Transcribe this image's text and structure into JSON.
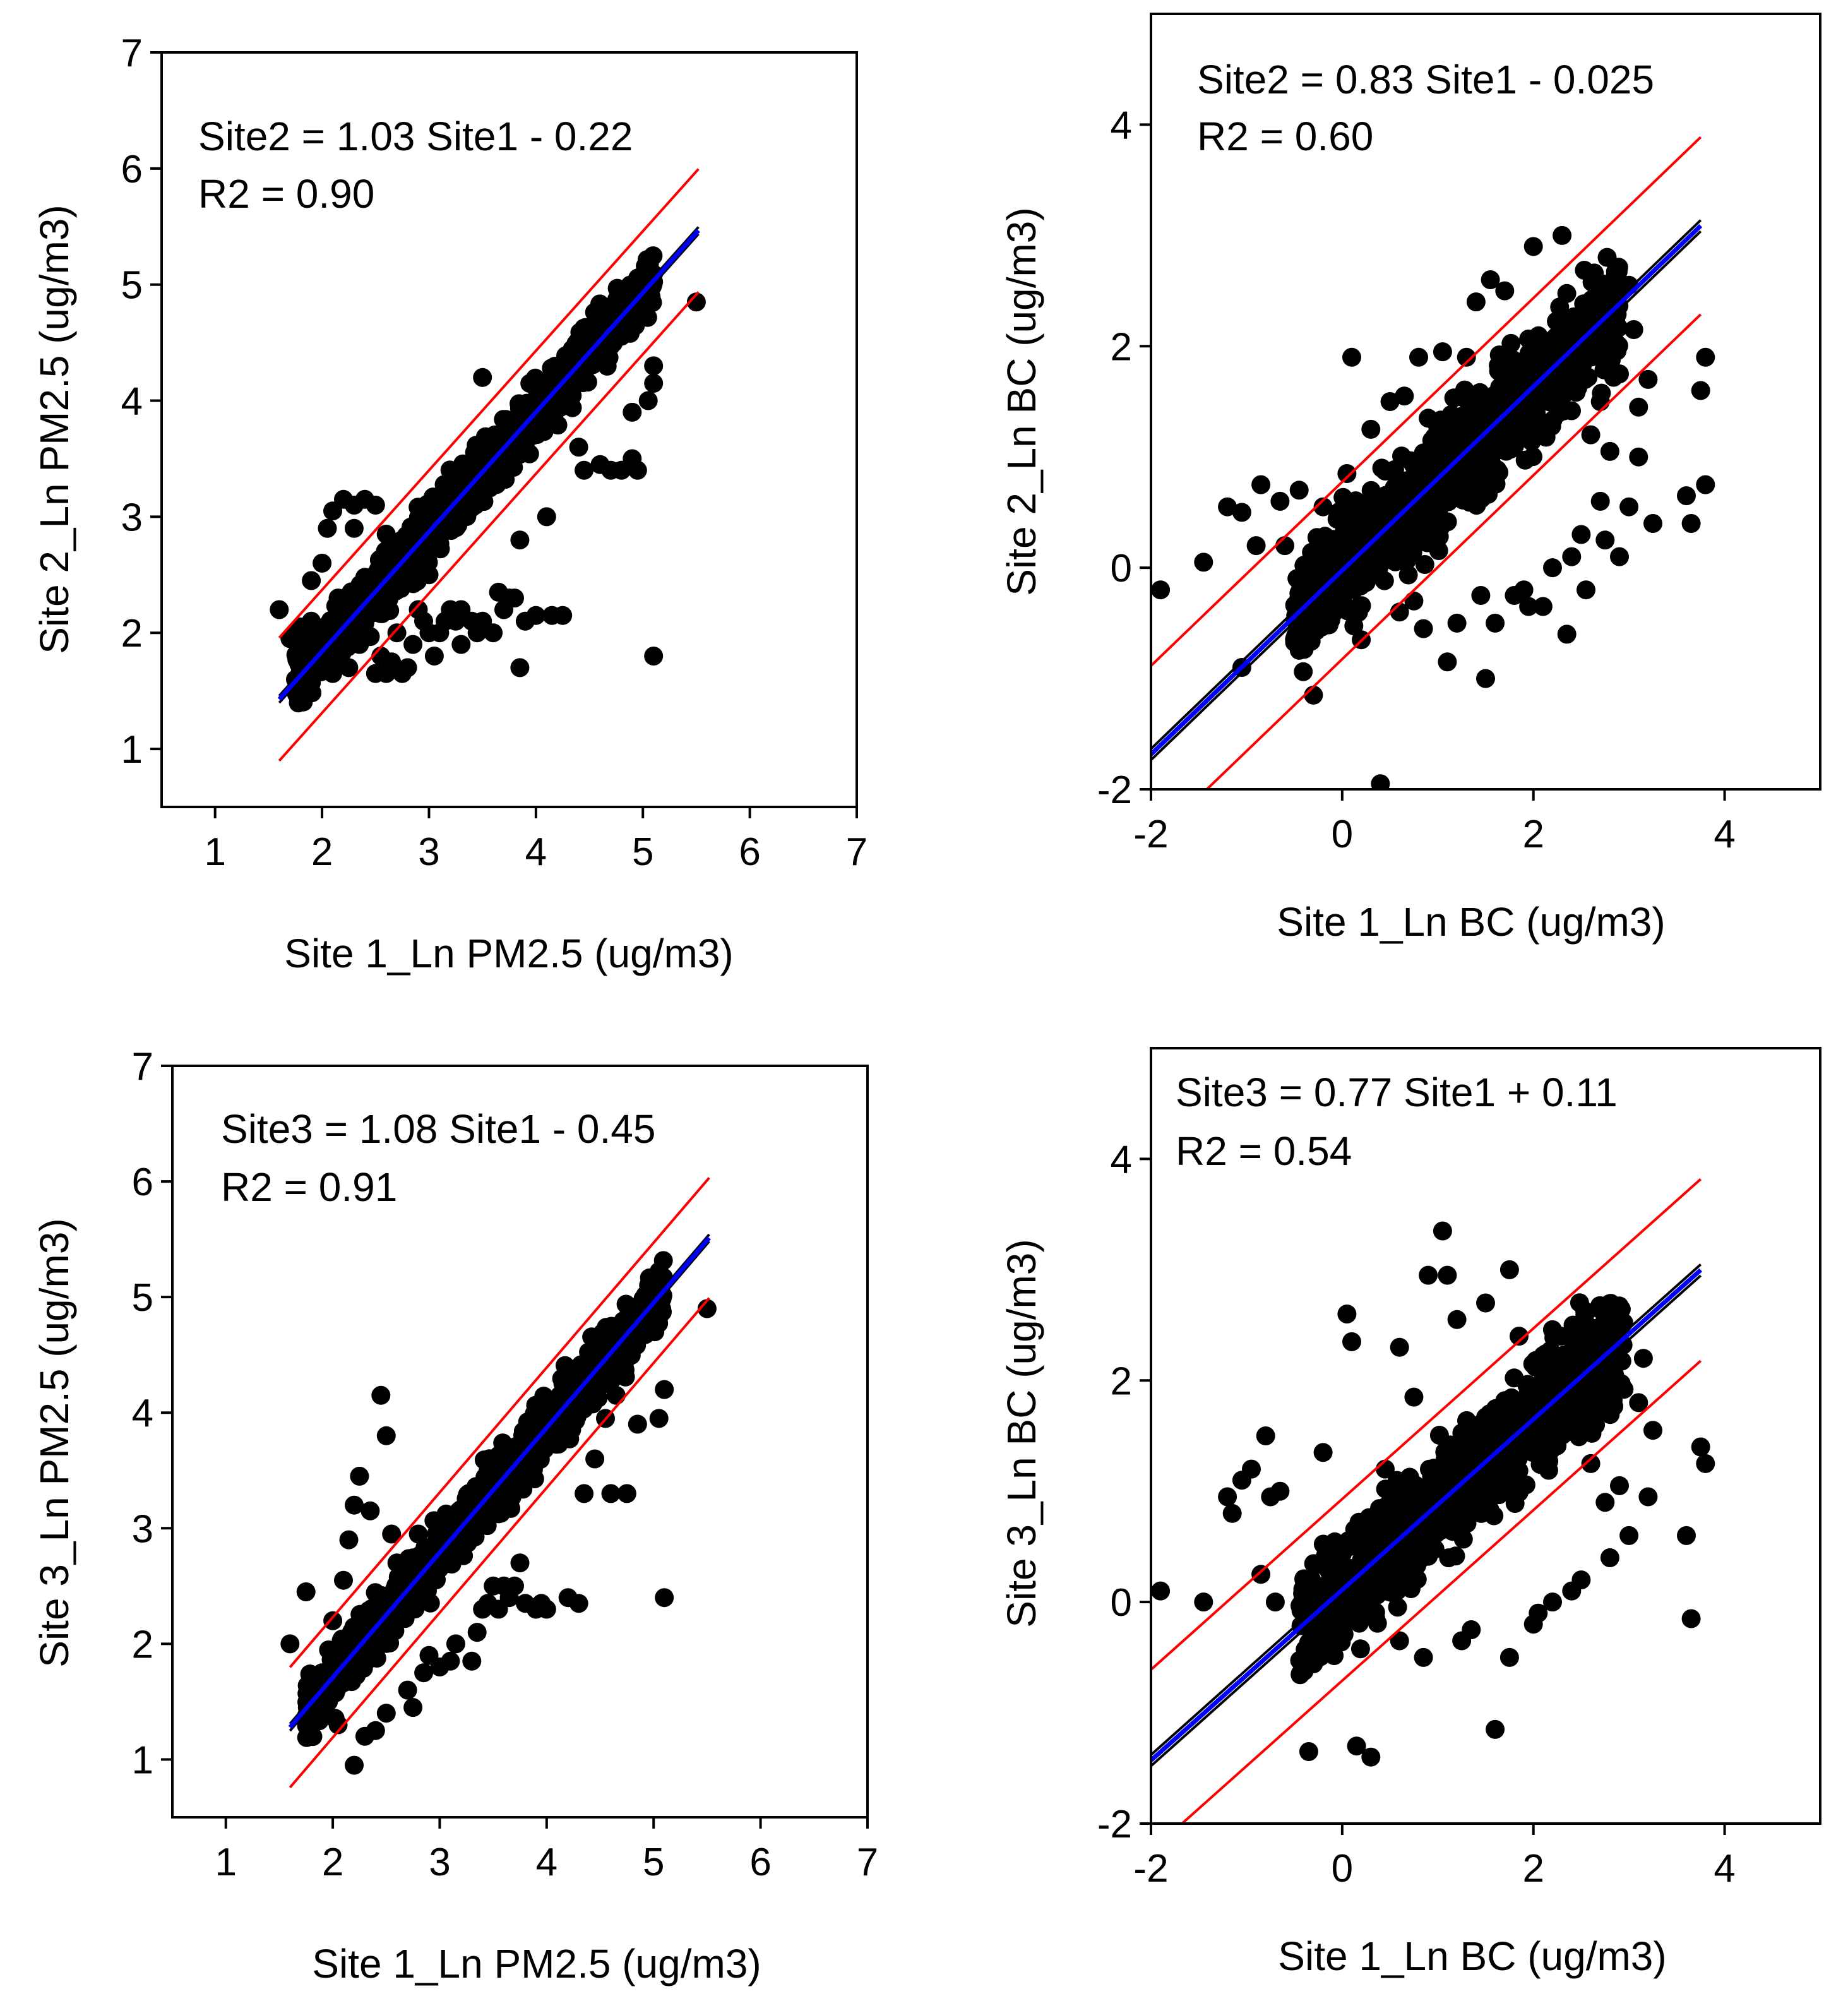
{
  "figure": {
    "colors": {
      "points": "#000000",
      "fit_line": "#0000ff",
      "ci_line": "#000000",
      "prediction_line": "#ff0000",
      "frame": "#000000"
    }
  },
  "chart_data": [
    {
      "id": "A",
      "type": "scatter",
      "title": "",
      "xlabel": "Site 1_Ln PM2.5 (ug/m3)",
      "ylabel": "Site 2_Ln PM2.5 (ug/m3)",
      "xlim": [
        0.5,
        7
      ],
      "ylim": [
        0.5,
        7
      ],
      "xticks": [
        1,
        2,
        3,
        4,
        5,
        6,
        7
      ],
      "yticks": [
        1,
        2,
        3,
        4,
        5,
        6,
        7
      ],
      "equation": "Site2 = 1.03 Site1 - 0.22",
      "r2_text": "R2 = 0.90",
      "fit": {
        "slope": 1.03,
        "intercept": -0.22,
        "x_range": [
          1.6,
          5.52
        ]
      },
      "prediction_band_offset": 0.53,
      "ci_band_offset": 0.03,
      "core": {
        "x_range": [
          1.75,
          5.1
        ],
        "spread": 0.38
      },
      "points": [
        [
          1.6,
          2.2
        ],
        [
          1.7,
          1.95
        ],
        [
          1.75,
          2.0
        ],
        [
          1.8,
          2.05
        ],
        [
          1.82,
          1.75
        ],
        [
          1.85,
          1.9
        ],
        [
          1.9,
          2.1
        ],
        [
          1.9,
          2.45
        ],
        [
          1.95,
          1.7
        ],
        [
          2.0,
          2.6
        ],
        [
          2.0,
          1.8
        ],
        [
          2.05,
          2.9
        ],
        [
          2.1,
          3.05
        ],
        [
          2.1,
          1.65
        ],
        [
          2.15,
          2.3
        ],
        [
          2.2,
          3.15
        ],
        [
          2.25,
          1.7
        ],
        [
          2.3,
          2.9
        ],
        [
          2.3,
          3.1
        ],
        [
          2.35,
          1.9
        ],
        [
          2.4,
          3.15
        ],
        [
          2.45,
          2.2
        ],
        [
          2.5,
          3.1
        ],
        [
          2.5,
          1.65
        ],
        [
          2.55,
          1.8
        ],
        [
          2.6,
          2.85
        ],
        [
          2.6,
          1.65
        ],
        [
          2.65,
          1.75
        ],
        [
          2.7,
          2.0
        ],
        [
          2.75,
          1.65
        ],
        [
          2.8,
          1.7
        ],
        [
          2.85,
          1.9
        ],
        [
          2.9,
          2.2
        ],
        [
          2.95,
          2.1
        ],
        [
          3.0,
          2.5
        ],
        [
          3.0,
          2.0
        ],
        [
          3.05,
          1.8
        ],
        [
          3.1,
          2.0
        ],
        [
          3.15,
          2.1
        ],
        [
          3.2,
          2.2
        ],
        [
          3.25,
          2.1
        ],
        [
          3.3,
          2.2
        ],
        [
          3.3,
          1.9
        ],
        [
          3.4,
          2.1
        ],
        [
          3.45,
          2.0
        ],
        [
          3.5,
          4.2
        ],
        [
          3.5,
          2.1
        ],
        [
          3.6,
          2.0
        ],
        [
          3.65,
          2.35
        ],
        [
          3.7,
          2.2
        ],
        [
          3.75,
          2.3
        ],
        [
          3.8,
          2.3
        ],
        [
          3.85,
          2.8
        ],
        [
          3.85,
          1.7
        ],
        [
          3.9,
          2.1
        ],
        [
          4.0,
          2.15
        ],
        [
          4.1,
          3.0
        ],
        [
          4.15,
          2.15
        ],
        [
          4.25,
          2.15
        ],
        [
          4.4,
          3.6
        ],
        [
          4.45,
          3.4
        ],
        [
          4.6,
          3.45
        ],
        [
          4.7,
          3.4
        ],
        [
          4.8,
          3.4
        ],
        [
          4.9,
          3.5
        ],
        [
          4.95,
          3.4
        ],
        [
          4.9,
          3.9
        ],
        [
          5.05,
          4.0
        ],
        [
          5.1,
          4.15
        ],
        [
          5.1,
          4.3
        ],
        [
          5.1,
          1.8
        ],
        [
          5.5,
          4.85
        ]
      ]
    },
    {
      "id": "B",
      "type": "scatter",
      "title": "",
      "xlabel": "Site 1_Ln BC (ug/m3)",
      "ylabel": "Site 2_Ln BC (ug/m3)",
      "xlim": [
        -2,
        5
      ],
      "ylim": [
        -2,
        5
      ],
      "xticks": [
        -2,
        0,
        2,
        4
      ],
      "yticks": [
        -2,
        0,
        2,
        4
      ],
      "equation": "Site2 = 0.83 Site1 - 0.025",
      "r2_text": "R2 = 0.60",
      "fit": {
        "slope": 0.83,
        "intercept": -0.025,
        "x_range": [
          -2,
          3.75
        ]
      },
      "prediction_band_offset": 0.8,
      "ci_band_offset": 0.05,
      "core": {
        "x_range": [
          -0.5,
          2.9
        ],
        "spread": 0.7
      },
      "points": [
        [
          -1.9,
          -0.2
        ],
        [
          -1.2,
          0.55
        ],
        [
          -1.05,
          0.5
        ],
        [
          -0.85,
          0.75
        ],
        [
          -0.65,
          0.6
        ],
        [
          -0.45,
          0.7
        ],
        [
          -1.45,
          0.05
        ],
        [
          -0.9,
          0.2
        ],
        [
          -1.05,
          -0.9
        ],
        [
          -0.6,
          0.2
        ],
        [
          -0.4,
          -0.65
        ],
        [
          -0.3,
          -1.15
        ],
        [
          -0.2,
          0.55
        ],
        [
          -0.1,
          0.05
        ],
        [
          0.05,
          0.85
        ],
        [
          0.1,
          1.9
        ],
        [
          0.2,
          -0.65
        ],
        [
          0.3,
          1.25
        ],
        [
          0.4,
          -1.95
        ],
        [
          0.5,
          1.5
        ],
        [
          0.6,
          -0.4
        ],
        [
          0.65,
          1.55
        ],
        [
          0.8,
          1.9
        ],
        [
          0.85,
          -0.55
        ],
        [
          0.9,
          1.35
        ],
        [
          1.05,
          1.95
        ],
        [
          1.1,
          -0.85
        ],
        [
          1.2,
          -0.5
        ],
        [
          1.3,
          1.9
        ],
        [
          1.4,
          2.4
        ],
        [
          1.45,
          -0.25
        ],
        [
          1.5,
          -1.0
        ],
        [
          1.55,
          2.6
        ],
        [
          1.6,
          -0.5
        ],
        [
          1.7,
          2.5
        ],
        [
          1.8,
          -0.25
        ],
        [
          1.9,
          -0.2
        ],
        [
          2.0,
          2.9
        ],
        [
          2.1,
          -0.35
        ],
        [
          2.2,
          0.0
        ],
        [
          2.3,
          3.0
        ],
        [
          2.35,
          -0.6
        ],
        [
          2.4,
          0.1
        ],
        [
          2.5,
          0.3
        ],
        [
          2.6,
          1.2
        ],
        [
          2.7,
          0.6
        ],
        [
          2.75,
          0.25
        ],
        [
          2.8,
          1.05
        ],
        [
          2.9,
          0.1
        ],
        [
          3.0,
          0.55
        ],
        [
          3.0,
          2.55
        ],
        [
          3.05,
          2.15
        ],
        [
          3.1,
          1.0
        ],
        [
          3.2,
          1.7
        ],
        [
          3.25,
          0.4
        ],
        [
          3.6,
          0.65
        ],
        [
          3.65,
          0.4
        ],
        [
          3.75,
          1.6
        ],
        [
          3.8,
          1.9
        ],
        [
          3.8,
          0.75
        ],
        [
          2.55,
          -0.2
        ],
        [
          1.95,
          -0.35
        ],
        [
          0.75,
          -0.3
        ],
        [
          -0.25,
          -0.25
        ],
        [
          3.1,
          1.45
        ],
        [
          2.9,
          1.75
        ],
        [
          2.7,
          1.5
        ]
      ]
    },
    {
      "id": "C",
      "type": "scatter",
      "title": "",
      "xlabel": "Site 1_Ln PM2.5 (ug/m3)",
      "ylabel": "Site 3_Ln PM2.5 (ug/m3)",
      "xlim": [
        0.5,
        7
      ],
      "ylim": [
        0.5,
        7
      ],
      "xticks": [
        1,
        2,
        3,
        4,
        5,
        6,
        7
      ],
      "yticks": [
        1,
        2,
        3,
        4,
        5,
        6,
        7
      ],
      "equation": "Site3 = 1.08 Site1 - 0.45",
      "r2_text": "R2 = 0.91",
      "fit": {
        "slope": 1.08,
        "intercept": -0.45,
        "x_range": [
          1.6,
          5.52
        ]
      },
      "prediction_band_offset": 0.52,
      "ci_band_offset": 0.03,
      "core": {
        "x_range": [
          1.75,
          5.1
        ],
        "spread": 0.4
      },
      "points": [
        [
          1.6,
          2.0
        ],
        [
          1.75,
          2.45
        ],
        [
          1.8,
          1.55
        ],
        [
          1.9,
          1.75
        ],
        [
          2.0,
          2.2
        ],
        [
          2.05,
          1.3
        ],
        [
          2.1,
          2.55
        ],
        [
          2.15,
          2.9
        ],
        [
          2.2,
          3.2
        ],
        [
          2.2,
          0.95
        ],
        [
          2.25,
          3.45
        ],
        [
          2.3,
          1.2
        ],
        [
          2.35,
          3.15
        ],
        [
          2.4,
          1.25
        ],
        [
          2.45,
          4.15
        ],
        [
          2.5,
          3.8
        ],
        [
          2.5,
          1.4
        ],
        [
          2.55,
          2.95
        ],
        [
          2.6,
          2.7
        ],
        [
          2.7,
          1.6
        ],
        [
          2.75,
          1.45
        ],
        [
          2.8,
          2.95
        ],
        [
          2.85,
          1.75
        ],
        [
          2.9,
          1.9
        ],
        [
          3.0,
          1.8
        ],
        [
          3.1,
          1.85
        ],
        [
          3.15,
          2.0
        ],
        [
          3.2,
          3.0
        ],
        [
          3.3,
          1.85
        ],
        [
          3.35,
          2.1
        ],
        [
          3.4,
          2.3
        ],
        [
          3.45,
          2.35
        ],
        [
          3.5,
          2.5
        ],
        [
          3.55,
          2.3
        ],
        [
          3.6,
          2.5
        ],
        [
          3.65,
          2.4
        ],
        [
          3.7,
          2.5
        ],
        [
          3.75,
          2.7
        ],
        [
          3.8,
          2.35
        ],
        [
          3.9,
          2.3
        ],
        [
          3.95,
          2.35
        ],
        [
          4.0,
          2.3
        ],
        [
          4.2,
          2.4
        ],
        [
          4.3,
          2.35
        ],
        [
          4.35,
          3.3
        ],
        [
          4.45,
          3.6
        ],
        [
          4.55,
          3.95
        ],
        [
          4.65,
          4.15
        ],
        [
          4.75,
          3.3
        ],
        [
          4.85,
          3.9
        ],
        [
          5.05,
          3.95
        ],
        [
          5.1,
          4.2
        ],
        [
          5.1,
          2.4
        ],
        [
          5.5,
          4.9
        ],
        [
          4.6,
          3.3
        ]
      ]
    },
    {
      "id": "D",
      "type": "scatter",
      "title": "",
      "xlabel": "Site 1_Ln BC (ug/m3)",
      "ylabel": "Site 3_Ln BC (ug/m3)",
      "xlim": [
        -2,
        5
      ],
      "ylim": [
        -2,
        5
      ],
      "xticks": [
        -2,
        0,
        2,
        4
      ],
      "yticks": [
        -2,
        0,
        2,
        4
      ],
      "equation": "Site3 = 0.77 Site1 + 0.11",
      "r2_text": "R2 = 0.54",
      "fit": {
        "slope": 0.77,
        "intercept": 0.11,
        "x_range": [
          -2,
          3.75
        ]
      },
      "prediction_band_offset": 0.82,
      "ci_band_offset": 0.05,
      "core": {
        "x_range": [
          -0.45,
          2.95
        ],
        "spread": 0.75
      },
      "points": [
        [
          -1.9,
          0.1
        ],
        [
          -1.45,
          0.0
        ],
        [
          -1.2,
          0.95
        ],
        [
          -1.15,
          0.8
        ],
        [
          -1.05,
          1.1
        ],
        [
          -0.95,
          1.2
        ],
        [
          -0.8,
          1.5
        ],
        [
          -0.65,
          1.0
        ],
        [
          -0.75,
          0.95
        ],
        [
          -0.85,
          0.25
        ],
        [
          -0.7,
          0.0
        ],
        [
          -0.4,
          0.2
        ],
        [
          -0.2,
          1.35
        ],
        [
          -0.35,
          -1.35
        ],
        [
          -0.1,
          0.3
        ],
        [
          0.05,
          2.6
        ],
        [
          0.1,
          2.35
        ],
        [
          0.15,
          -1.3
        ],
        [
          0.2,
          0.5
        ],
        [
          0.3,
          -1.4
        ],
        [
          0.45,
          1.2
        ],
        [
          0.6,
          2.3
        ],
        [
          0.75,
          1.85
        ],
        [
          0.85,
          -0.5
        ],
        [
          0.9,
          2.95
        ],
        [
          1.05,
          3.35
        ],
        [
          1.1,
          2.95
        ],
        [
          1.2,
          2.55
        ],
        [
          1.35,
          -0.25
        ],
        [
          1.5,
          2.7
        ],
        [
          1.6,
          -1.15
        ],
        [
          1.75,
          -0.5
        ],
        [
          1.85,
          2.4
        ],
        [
          2.0,
          -0.2
        ],
        [
          2.2,
          0.0
        ],
        [
          2.4,
          0.1
        ],
        [
          2.5,
          0.2
        ],
        [
          2.6,
          1.25
        ],
        [
          2.75,
          0.9
        ],
        [
          2.8,
          0.4
        ],
        [
          2.9,
          1.05
        ],
        [
          3.0,
          0.6
        ],
        [
          3.1,
          1.8
        ],
        [
          3.15,
          2.2
        ],
        [
          3.2,
          0.95
        ],
        [
          3.25,
          1.55
        ],
        [
          3.6,
          0.6
        ],
        [
          3.65,
          -0.15
        ],
        [
          3.75,
          1.4
        ],
        [
          3.8,
          1.25
        ],
        [
          1.25,
          -0.35
        ],
        [
          2.05,
          -0.1
        ],
        [
          0.6,
          -0.35
        ],
        [
          2.85,
          2.05
        ],
        [
          2.65,
          1.6
        ],
        [
          1.75,
          3.0
        ]
      ]
    }
  ]
}
